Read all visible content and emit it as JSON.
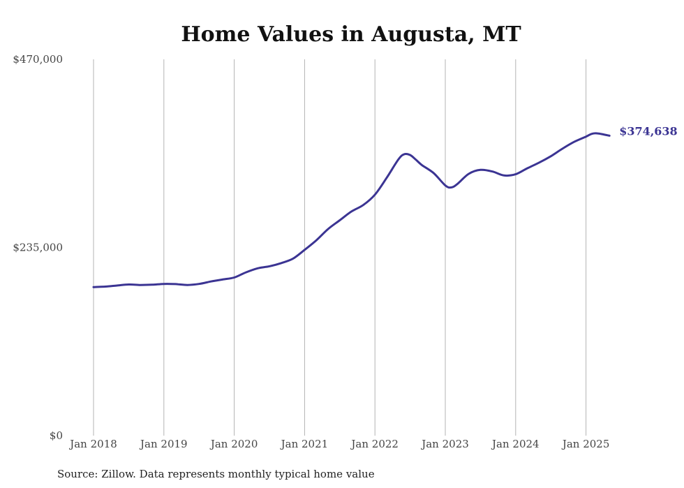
{
  "chart_data": {
    "type": "line",
    "title": "Home Values in Augusta, MT",
    "xlabel": "",
    "ylabel": "",
    "ylim": [
      0,
      470000
    ],
    "yticks": [
      0,
      235000,
      470000
    ],
    "ytick_labels": [
      "$0",
      "$235,000",
      "$470,000"
    ],
    "xticks": [
      "2018-01",
      "2019-01",
      "2020-01",
      "2021-01",
      "2022-01",
      "2023-01",
      "2024-01",
      "2025-01"
    ],
    "xtick_labels": [
      "Jan 2018",
      "Jan 2019",
      "Jan 2020",
      "Jan 2021",
      "Jan 2022",
      "Jan 2023",
      "Jan 2024",
      "Jan 2025"
    ],
    "grid": "vertical",
    "legend": "none",
    "line_color": "#3b3493",
    "end_label": "$374,638",
    "series": [
      {
        "values": [
          [
            "2018-01",
            185500
          ],
          [
            "2018-03",
            186200
          ],
          [
            "2018-05",
            187500
          ],
          [
            "2018-07",
            188800
          ],
          [
            "2018-09",
            188200
          ],
          [
            "2018-11",
            188500
          ],
          [
            "2019-01",
            189500
          ],
          [
            "2019-03",
            189300
          ],
          [
            "2019-05",
            188200
          ],
          [
            "2019-07",
            189500
          ],
          [
            "2019-09",
            192500
          ],
          [
            "2019-11",
            195000
          ],
          [
            "2020-01",
            197500
          ],
          [
            "2020-03",
            204000
          ],
          [
            "2020-05",
            209000
          ],
          [
            "2020-07",
            211500
          ],
          [
            "2020-09",
            215500
          ],
          [
            "2020-11",
            221000
          ],
          [
            "2021-01",
            232000
          ],
          [
            "2021-03",
            244000
          ],
          [
            "2021-05",
            258000
          ],
          [
            "2021-07",
            269000
          ],
          [
            "2021-09",
            280000
          ],
          [
            "2021-11",
            288000
          ],
          [
            "2022-01",
            301000
          ],
          [
            "2022-03",
            322000
          ],
          [
            "2022-05",
            345000
          ],
          [
            "2022-06",
            351500
          ],
          [
            "2022-07",
            350500
          ],
          [
            "2022-08",
            344500
          ],
          [
            "2022-09",
            338000
          ],
          [
            "2022-11",
            328000
          ],
          [
            "2023-01",
            312500
          ],
          [
            "2023-02",
            310000
          ],
          [
            "2023-03",
            314000
          ],
          [
            "2023-05",
            327000
          ],
          [
            "2023-07",
            332000
          ],
          [
            "2023-09",
            330000
          ],
          [
            "2023-11",
            325000
          ],
          [
            "2024-01",
            326500
          ],
          [
            "2024-03",
            334000
          ],
          [
            "2024-05",
            341000
          ],
          [
            "2024-07",
            349000
          ],
          [
            "2024-09",
            358500
          ],
          [
            "2024-11",
            367000
          ],
          [
            "2025-01",
            373500
          ],
          [
            "2025-02",
            377000
          ],
          [
            "2025-03",
            377500
          ],
          [
            "2025-05",
            374638
          ]
        ]
      }
    ]
  },
  "source_note": "Source: Zillow. Data represents monthly typical home value"
}
